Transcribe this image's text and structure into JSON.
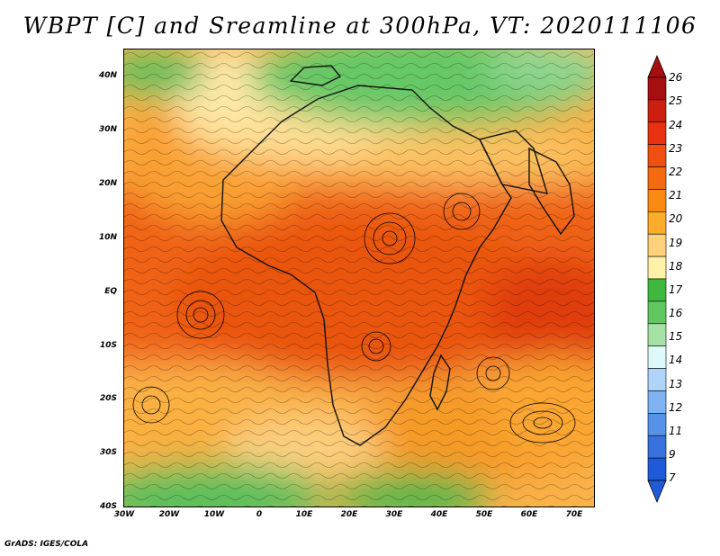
{
  "title": "WBPT [C] and Sreamline at 300hPa, VT: 2020111106",
  "credit": "GrADS: IGES/COLA",
  "lat_ticks": [
    "40N",
    "30N",
    "20N",
    "10N",
    "EQ",
    "10S",
    "20S",
    "30S",
    "40S"
  ],
  "lon_ticks": [
    "30W",
    "20W",
    "10W",
    "0",
    "10E",
    "20E",
    "30E",
    "40E",
    "50E",
    "60E",
    "70E"
  ],
  "colorbar": {
    "labels": [
      "26",
      "25",
      "24",
      "23",
      "22",
      "21",
      "20",
      "19",
      "18",
      "17",
      "16",
      "15",
      "14",
      "13",
      "12",
      "11",
      "9",
      "7"
    ],
    "colors": [
      "#a50f0f",
      "#cc1f0f",
      "#e8320f",
      "#ef4f10",
      "#f46a10",
      "#fa8a14",
      "#fcab2a",
      "#fdd27a",
      "#fff2a8",
      "#3fb83f",
      "#61c861",
      "#a5e0a5",
      "#dff8f8",
      "#b0d4f8",
      "#7fb2f0",
      "#5592e8",
      "#3a72dd",
      "#1f5ad8"
    ]
  }
}
